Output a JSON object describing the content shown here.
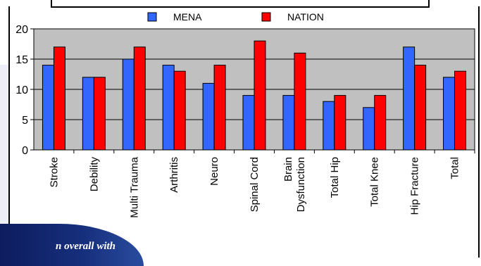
{
  "slide": {
    "footer_text": "n overall with",
    "title_fragment": ""
  },
  "chart_data": {
    "type": "bar",
    "title": "",
    "xlabel": "",
    "ylabel": "",
    "categories": [
      "Stroke",
      "Debility",
      "Multi Trauma",
      "Arthritis",
      "Neuro",
      "Spinal Cord",
      "Brain Dysfunction",
      "Total Hip",
      "Total Knee",
      "Hip Fracture",
      "Total"
    ],
    "category_lines": [
      [
        "Stroke"
      ],
      [
        "Debility"
      ],
      [
        "Multi Trauma"
      ],
      [
        "Arthritis"
      ],
      [
        "Neuro"
      ],
      [
        "Spinal Cord"
      ],
      [
        "Brain",
        "Dysfunction"
      ],
      [
        "Total Hip"
      ],
      [
        "Total Knee"
      ],
      [
        "Hip Fracture"
      ],
      [
        "Total"
      ]
    ],
    "series": [
      {
        "name": "MENA",
        "color": "#3366ff",
        "values": [
          14,
          12,
          15,
          14,
          11,
          9,
          9,
          8,
          7,
          17,
          12
        ]
      },
      {
        "name": "NATION",
        "color": "#ff0000",
        "values": [
          17,
          12,
          17,
          13,
          14,
          18,
          16,
          9,
          9,
          14,
          13
        ]
      }
    ],
    "ylim": [
      0,
      20
    ],
    "yticks": [
      "0",
      "5",
      "10",
      "15",
      "20"
    ],
    "grid": true,
    "plot_background": "#c0c0c0",
    "legend_position": "top"
  }
}
